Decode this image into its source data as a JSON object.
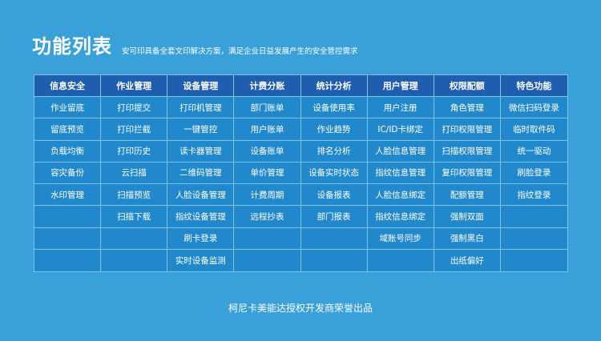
{
  "header": {
    "title": "功能列表",
    "subtitle": "安可印具备全套文印解决方案，满足企业日益发展产生的安全管控需求"
  },
  "columns": [
    {
      "title": "信息安全",
      "items": [
        "作业留底",
        "留底预览",
        "负载均衡",
        "容灾备份",
        "水印管理"
      ]
    },
    {
      "title": "作业管理",
      "items": [
        "打印提交",
        "打印拦截",
        "打印历史",
        "云扫描",
        "扫描预览",
        "扫描下载"
      ]
    },
    {
      "title": "设备管理",
      "items": [
        "打印机管理",
        "一键管控",
        "读卡器管理",
        "二维码管理",
        "人脸设备管理",
        "指纹设备管理",
        "刷卡登录",
        "实时设备监测"
      ]
    },
    {
      "title": "计费分账",
      "items": [
        "部门账单",
        "用户账单",
        "设备账单",
        "单价管理",
        "计费周期",
        "远程抄表"
      ]
    },
    {
      "title": "统计分析",
      "items": [
        "设备使用率",
        "作业趋势",
        "排名分析",
        "设备实时状态",
        "设备报表",
        "部门报表"
      ]
    },
    {
      "title": "用户管理",
      "items": [
        "用户注册",
        "IC/ID卡绑定",
        "人脸信息管理",
        "指纹信息管理",
        "人脸信息绑定",
        "指纹信息绑定",
        "域账号同步"
      ]
    },
    {
      "title": "权限配额",
      "items": [
        "角色管理",
        "打印权限管理",
        "扫描权限管理",
        "复印权限管理",
        "配额管理",
        "强制双面",
        "强制黑白",
        "出纸偏好"
      ]
    },
    {
      "title": "特色功能",
      "items": [
        "微信扫码登录",
        "临时取件码",
        "统一驱动",
        "刷脸登录",
        "指纹登录"
      ]
    }
  ],
  "footer": {
    "text": "柯尼卡美能达授权开发商荣誉出品"
  }
}
